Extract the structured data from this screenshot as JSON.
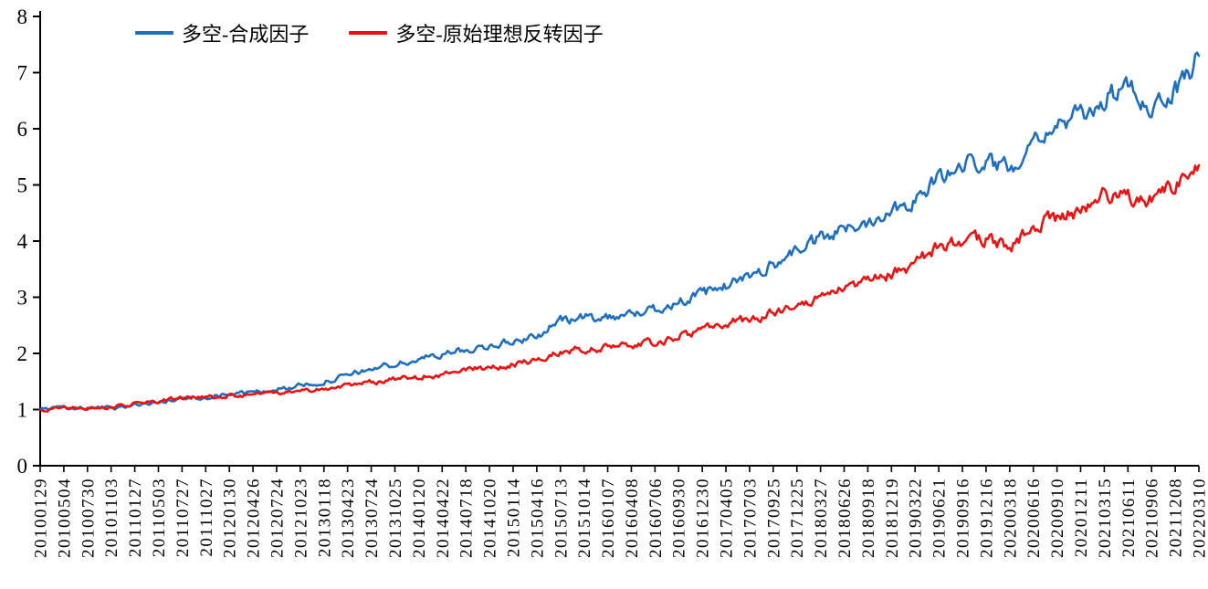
{
  "chart_data": {
    "type": "line",
    "title": "",
    "xlabel": "",
    "ylabel": "",
    "ylim": [
      0,
      8
    ],
    "yticks": [
      0,
      1,
      2,
      3,
      4,
      5,
      6,
      7,
      8
    ],
    "grid": false,
    "legend_position": "top",
    "categories": [
      "20100129",
      "20100504",
      "20100730",
      "20101103",
      "20110127",
      "20110503",
      "20110727",
      "20111027",
      "20120130",
      "20120426",
      "20120724",
      "20121023",
      "20130118",
      "20130423",
      "20130724",
      "20131025",
      "20140120",
      "20140422",
      "20140718",
      "20141020",
      "20150114",
      "20150416",
      "20150713",
      "20151014",
      "20160107",
      "20160408",
      "20160706",
      "20160930",
      "20161230",
      "20170405",
      "20170703",
      "20170925",
      "20171225",
      "20180327",
      "20180626",
      "20180918",
      "20181219",
      "20190322",
      "20190621",
      "20190916",
      "20191216",
      "20200318",
      "20200616",
      "20200910",
      "20201211",
      "20210315",
      "20210611",
      "20210906",
      "20211208",
      "20220310"
    ],
    "series": [
      {
        "name": "多空-合成因子",
        "color": "#1e6fbf",
        "values": [
          1.0,
          1.03,
          1.02,
          1.02,
          1.08,
          1.13,
          1.19,
          1.23,
          1.28,
          1.3,
          1.36,
          1.42,
          1.5,
          1.6,
          1.73,
          1.8,
          1.88,
          2.0,
          2.05,
          2.15,
          2.2,
          2.32,
          2.58,
          2.63,
          2.66,
          2.7,
          2.78,
          2.92,
          3.05,
          3.2,
          3.38,
          3.58,
          3.85,
          4.02,
          4.2,
          4.35,
          4.58,
          4.75,
          5.1,
          5.35,
          5.45,
          5.25,
          5.9,
          6.05,
          6.2,
          6.55,
          6.7,
          6.42,
          6.65,
          7.3
        ]
      },
      {
        "name": "多空-原始理想反转因子",
        "color": "#ee1111",
        "values": [
          1.0,
          1.04,
          1.03,
          1.04,
          1.1,
          1.14,
          1.2,
          1.22,
          1.25,
          1.25,
          1.3,
          1.33,
          1.38,
          1.44,
          1.5,
          1.53,
          1.58,
          1.63,
          1.7,
          1.76,
          1.8,
          1.87,
          2.05,
          2.08,
          2.1,
          2.13,
          2.2,
          2.3,
          2.42,
          2.52,
          2.62,
          2.72,
          2.88,
          3.02,
          3.15,
          3.27,
          3.42,
          3.58,
          3.9,
          4.0,
          4.02,
          3.88,
          4.3,
          4.4,
          4.55,
          4.85,
          4.78,
          4.76,
          5.0,
          5.35
        ]
      }
    ]
  }
}
